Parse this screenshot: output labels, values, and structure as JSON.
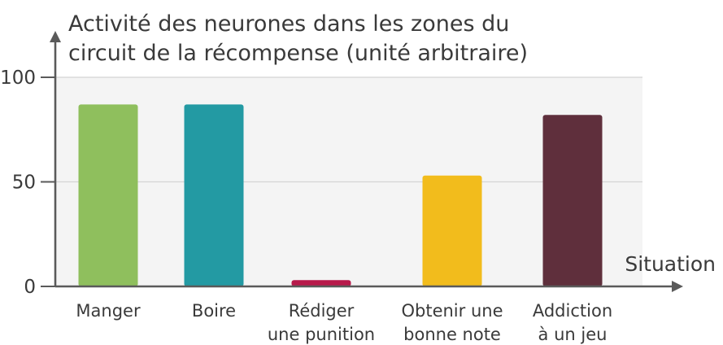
{
  "chart_data": {
    "type": "bar",
    "title": [
      "Activité des neurones dans les zones du",
      "circuit de la récompense (unité arbitraire)"
    ],
    "xlabel": "Situation",
    "ylabel": "",
    "ylim": [
      0,
      100
    ],
    "yticks": [
      0,
      50,
      100
    ],
    "grid": true,
    "categories": [
      [
        "Manger"
      ],
      [
        "Boire"
      ],
      [
        "Rédiger",
        "une punition"
      ],
      [
        "Obtenir une",
        "bonne note"
      ],
      [
        "Addiction",
        "à un jeu"
      ]
    ],
    "values": [
      87,
      87,
      3,
      53,
      82
    ],
    "colors": [
      "#8fbf5d",
      "#239aa3",
      "#b71a4b",
      "#f2bc1c",
      "#5f2f3c"
    ]
  }
}
